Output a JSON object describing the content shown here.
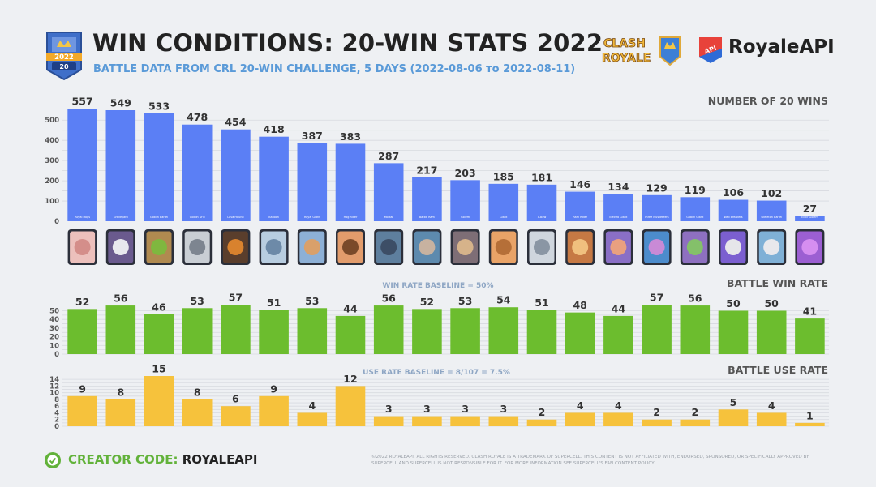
{
  "header": {
    "badge_year": "2022",
    "badge_number": "20",
    "title": "WIN CONDITIONS: 20-WIN STATS 2022",
    "subtitle": "BATTLE DATA FROM CRL 20-WIN CHALLENGE, 5 DAYS (2022-08-06 ᴛᴏ 2022-08-11)",
    "logo_clash_royale": [
      "CLASH",
      "ROYALE"
    ],
    "logo_royaleapi_badge": "API",
    "logo_royaleapi": "RoyaleAPI"
  },
  "colors": {
    "wins_bar": "#5b7ff5",
    "winrate_bar": "#6cbd2e",
    "userate_bar": "#f6c23c",
    "grid": "#d7dae0",
    "text_dark": "#333333",
    "text_muted": "#555555",
    "baseline_label": "#8ea6c4"
  },
  "chart_data": [
    {
      "id": "wins",
      "type": "bar",
      "title": "NUMBER OF 20 WINS",
      "categories": [
        "Royal Hogs",
        "Graveyard",
        "Goblin Barrel",
        "Goblin Drill",
        "Lava Hound",
        "Balloon",
        "Royal Giant",
        "Hog Rider",
        "Mortar",
        "Battle Ram",
        "Golem",
        "Giant",
        "X-Bow",
        "Ram Rider",
        "Electro Giant",
        "Three Musketeers",
        "Goblin Giant",
        "Wall Breakers",
        "Skeleton Barrel",
        "Elixir Golem"
      ],
      "values": [
        557,
        549,
        533,
        478,
        454,
        418,
        387,
        383,
        287,
        217,
        203,
        185,
        181,
        146,
        134,
        129,
        119,
        106,
        102,
        27
      ],
      "yticks": [
        0,
        100,
        200,
        300,
        400,
        500
      ],
      "ylim": [
        0,
        557
      ]
    },
    {
      "id": "winrate",
      "type": "bar",
      "title": "BATTLE WIN RATE",
      "baseline_label": "WIN RATE BASELINE = 50%",
      "categories": [
        "Royal Hogs",
        "Graveyard",
        "Goblin Barrel",
        "Goblin Drill",
        "Lava Hound",
        "Balloon",
        "Royal Giant",
        "Hog Rider",
        "Mortar",
        "Battle Ram",
        "Golem",
        "Giant",
        "X-Bow",
        "Ram Rider",
        "Electro Giant",
        "Three Musketeers",
        "Goblin Giant",
        "Wall Breakers",
        "Skeleton Barrel",
        "Elixir Golem"
      ],
      "values": [
        52,
        56,
        46,
        53,
        57,
        51,
        53,
        44,
        56,
        52,
        53,
        54,
        51,
        48,
        44,
        57,
        56,
        50,
        50,
        41
      ],
      "yticks": [
        0,
        10,
        20,
        30,
        40,
        50
      ],
      "ylim": [
        0,
        57
      ]
    },
    {
      "id": "userate",
      "type": "bar",
      "title": "BATTLE USE RATE",
      "baseline_label": "USE RATE BASELINE = 8/107 = 7.5%",
      "categories": [
        "Royal Hogs",
        "Graveyard",
        "Goblin Barrel",
        "Goblin Drill",
        "Lava Hound",
        "Balloon",
        "Royal Giant",
        "Hog Rider",
        "Mortar",
        "Battle Ram",
        "Golem",
        "Giant",
        "X-Bow",
        "Ram Rider",
        "Electro Giant",
        "Three Musketeers",
        "Goblin Giant",
        "Wall Breakers",
        "Skeleton Barrel",
        "Elixir Golem"
      ],
      "values": [
        9,
        8,
        15,
        8,
        6,
        9,
        4,
        12,
        3,
        3,
        3,
        3,
        2,
        4,
        4,
        2,
        2,
        5,
        4,
        1
      ],
      "yticks": [
        0,
        2,
        4,
        6,
        8,
        10,
        12,
        14
      ],
      "ylim": [
        0,
        15
      ]
    }
  ],
  "cards": [
    {
      "name": "Royal Hogs",
      "bg": "#ecc0bc",
      "fg": "#d48e8a"
    },
    {
      "name": "Graveyard",
      "bg": "#6a5a8e",
      "fg": "#e8e8ee"
    },
    {
      "name": "Goblin Barrel",
      "bg": "#b08a50",
      "fg": "#7fb73f"
    },
    {
      "name": "Goblin Drill",
      "bg": "#c9ced4",
      "fg": "#7d8590"
    },
    {
      "name": "Lava Hound",
      "bg": "#5a3e2c",
      "fg": "#d8822e"
    },
    {
      "name": "Balloon",
      "bg": "#b8cde0",
      "fg": "#6d8aa8"
    },
    {
      "name": "Royal Giant",
      "bg": "#8db0d6",
      "fg": "#d9a06a"
    },
    {
      "name": "Hog Rider",
      "bg": "#e29c6c",
      "fg": "#7a4a2a"
    },
    {
      "name": "Mortar",
      "bg": "#5e7f9e",
      "fg": "#3d4e66"
    },
    {
      "name": "Battle Ram",
      "bg": "#5d8aae",
      "fg": "#c7b2a0"
    },
    {
      "name": "Golem",
      "bg": "#7e6e76",
      "fg": "#d6b38a"
    },
    {
      "name": "Giant",
      "bg": "#e9a367",
      "fg": "#b56f38"
    },
    {
      "name": "X-Bow",
      "bg": "#cfd6de",
      "fg": "#8a96a4"
    },
    {
      "name": "Ram Rider",
      "bg": "#c67944",
      "fg": "#f0c07e"
    },
    {
      "name": "Electro Giant",
      "bg": "#8a6fc6",
      "fg": "#e9a080"
    },
    {
      "name": "Three Musketeers",
      "bg": "#4c8ccc",
      "fg": "#c98ad6"
    },
    {
      "name": "Goblin Giant",
      "bg": "#8e70c0",
      "fg": "#84c06a"
    },
    {
      "name": "Wall Breakers",
      "bg": "#7b5fd0",
      "fg": "#e6e6ea"
    },
    {
      "name": "Skeleton Barrel",
      "bg": "#7fb0d6",
      "fg": "#e8e8ec"
    },
    {
      "name": "Elixir Golem",
      "bg": "#9c5fd2",
      "fg": "#d58ef0"
    }
  ],
  "footer": {
    "creator_label": "CREATOR CODE:",
    "creator_code": "ROYALEAPI",
    "legal": "©2022 ROYALEAPI. ALL RIGHTS RESERVED. CLASH ROYALE IS A TRADEMARK OF SUPERCELL. THIS CONTENT IS NOT AFFILIATED WITH, ENDORSED, SPONSORED, OR SPECIFICALLY APPROVED BY SUPERCELL AND SUPERCELL IS NOT RESPONSIBLE FOR IT. FOR MORE INFORMATION SEE SUPERCELL'S FAN CONTENT POLICY."
  }
}
